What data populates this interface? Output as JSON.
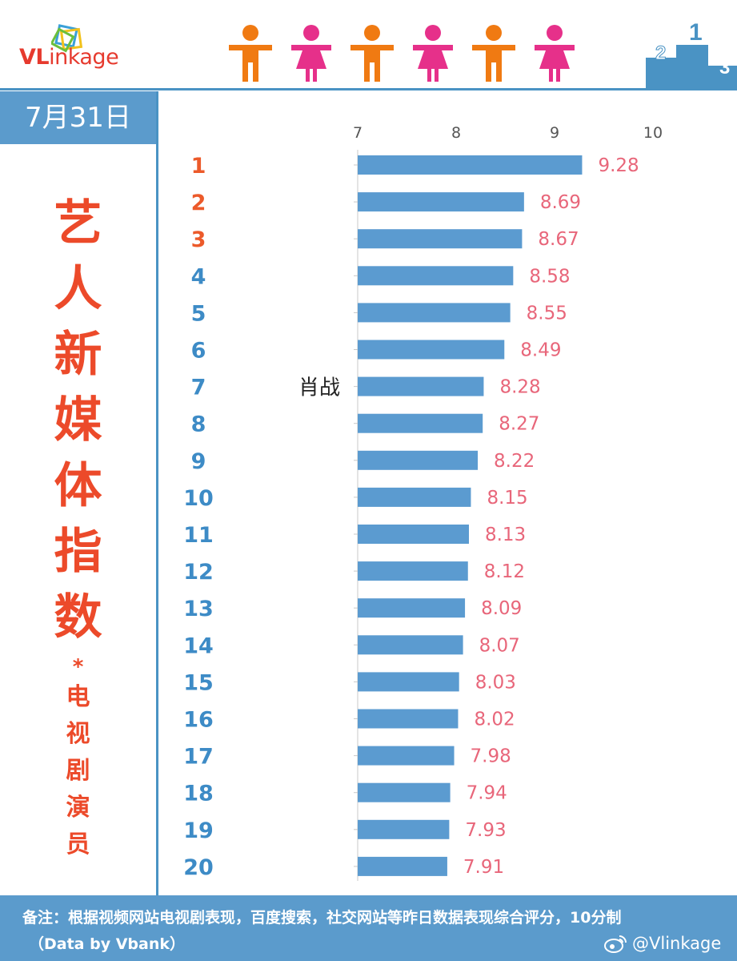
{
  "header": {
    "logo": {
      "prefix": "VL",
      "rest": "inkage"
    },
    "people_icons": [
      "male-icon",
      "female-icon",
      "male-icon",
      "female-icon",
      "male-icon",
      "female-icon"
    ],
    "podium_numbers": [
      "2",
      "1",
      "3"
    ]
  },
  "date": "7月31日",
  "title": {
    "main_chars": [
      "艺",
      "人",
      "新",
      "媒",
      "体",
      "指",
      "数"
    ],
    "separator": "*",
    "sub_chars": [
      "电",
      "视",
      "剧",
      "演",
      "员"
    ]
  },
  "footer": {
    "note": "备注：根据视频网站电视剧表现，百度搜索，社交网站等昨日数据表现综合评分，10分制",
    "data_by": "（Data by Vbank）",
    "weibo": "@Vlinkage"
  },
  "colors": {
    "bar": "#5b9bd0",
    "value_label": "#e8667a",
    "rank_top3": "#ec5a2a",
    "rank_other": "#3d8bc6",
    "frame": "#4a93c4",
    "male": "#f07a12",
    "female": "#e6308a"
  },
  "chart_data": {
    "type": "bar",
    "orientation": "horizontal",
    "categories": [
      "1",
      "2",
      "3",
      "4",
      "5",
      "6",
      "7",
      "8",
      "9",
      "10",
      "11",
      "12",
      "13",
      "14",
      "15",
      "16",
      "17",
      "18",
      "19",
      "20"
    ],
    "values": [
      9.28,
      8.69,
      8.67,
      8.58,
      8.55,
      8.49,
      8.28,
      8.27,
      8.22,
      8.15,
      8.13,
      8.12,
      8.09,
      8.07,
      8.03,
      8.02,
      7.98,
      7.94,
      7.93,
      7.91
    ],
    "names": [
      "",
      "",
      "",
      "",
      "",
      "",
      "肖战",
      "",
      "",
      "",
      "",
      "",
      "",
      "",
      "",
      "",
      "",
      "",
      "",
      ""
    ],
    "xticks": [
      "7",
      "8",
      "9",
      "10"
    ],
    "xlim": [
      7,
      10
    ],
    "data_labels": true,
    "title": "",
    "xlabel": "",
    "ylabel": ""
  }
}
